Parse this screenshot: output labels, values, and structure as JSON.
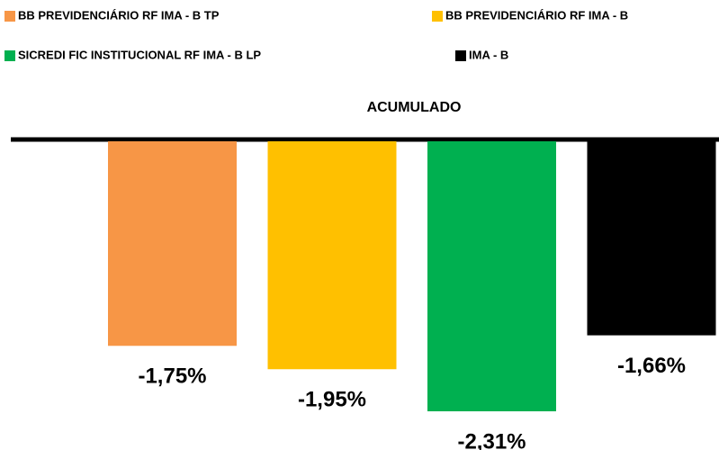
{
  "chart_data": {
    "type": "bar",
    "categories": [
      "ACUMULADO"
    ],
    "series": [
      {
        "name": "BB PREVIDENCIÁRIO RF IMA - B TP",
        "color": "#f79646",
        "values": [
          -1.75
        ],
        "value_labels": [
          "-1,75%"
        ]
      },
      {
        "name": "BB PREVIDENCIÁRIO RF IMA - B",
        "color": "#ffc000",
        "values": [
          -1.95
        ],
        "value_labels": [
          "-1,95%"
        ]
      },
      {
        "name": "SICREDI FIC INSTITUCIONAL RF IMA - B LP",
        "color": "#00b050",
        "values": [
          -2.31
        ],
        "value_labels": [
          "-2,31%"
        ]
      },
      {
        "name": "IMA - B",
        "color": "#000000",
        "values": [
          -1.66
        ],
        "value_labels": [
          "-1,66%"
        ]
      }
    ]
  }
}
